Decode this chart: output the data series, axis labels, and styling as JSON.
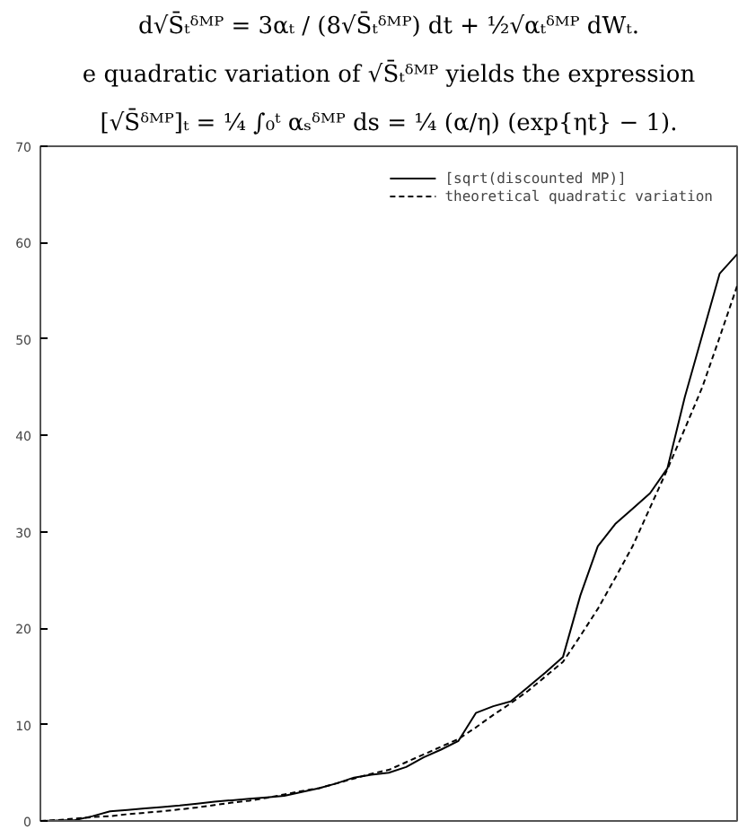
{
  "chart_data": {
    "type": "line",
    "annotations": [
      "d√S̄ₜᵟᴹᴾ = 3αₜ / (8√S̄ₜᵟᴹᴾ) dt + ½√αₜᵟᴹᴾ dWₜ.",
      "e quadratic variation of √S̄ₜᵟᴹᴾ yields the expression",
      "[√S̄ᵟᴹᴾ]ₜ = ¼ ∫₀ᵗ αₛᵟᴹᴾ ds = ¼ (α/η) (exp{ηt} − 1)."
    ],
    "categories": [
      null,
      null,
      null,
      null,
      null,
      null,
      null,
      null,
      null,
      null,
      null,
      null,
      null,
      null,
      null,
      null,
      null,
      null,
      null,
      null,
      null,
      null,
      null,
      null,
      null,
      null,
      null,
      null,
      null,
      null,
      null,
      null,
      null,
      null,
      null,
      null,
      null,
      null,
      null,
      null,
      null
    ],
    "series": [
      {
        "name": "[sqrt(discounted MP)]",
        "color": "#000000",
        "line_style": "solid",
        "values": [
          0,
          0.05,
          0.1,
          0.5,
          1.0,
          1.15,
          1.3,
          1.45,
          1.6,
          1.8,
          2.0,
          2.15,
          2.3,
          2.45,
          2.6,
          3.0,
          3.4,
          3.9,
          4.5,
          4.8,
          5.0,
          5.6,
          6.6,
          7.4,
          8.3,
          11.2,
          11.9,
          12.4,
          13.9,
          15.4,
          17.0,
          23.4,
          28.5,
          30.8,
          32.4,
          34.0,
          36.6,
          44.0,
          50.4,
          56.8,
          58.8
        ]
      },
      {
        "name": "theoretical quadratic variation",
        "color": "#000000",
        "line_style": "dashed",
        "values": [
          0,
          0.1,
          0.25,
          0.4,
          0.5,
          0.7,
          0.85,
          1.0,
          1.2,
          1.4,
          1.65,
          1.9,
          2.1,
          2.4,
          2.75,
          3.1,
          3.4,
          3.9,
          4.4,
          4.9,
          5.3,
          6.1,
          6.9,
          7.7,
          8.5,
          9.7,
          11,
          12.2,
          13.5,
          15,
          16.5,
          19.2,
          22,
          25.2,
          28.5,
          32.5,
          36.5,
          40.7,
          45,
          50.2,
          55.5
        ]
      }
    ],
    "ylim": [
      0,
      70
    ],
    "yticks": [
      0,
      10,
      20,
      30,
      40,
      50,
      60,
      70
    ],
    "legend": "top right"
  }
}
